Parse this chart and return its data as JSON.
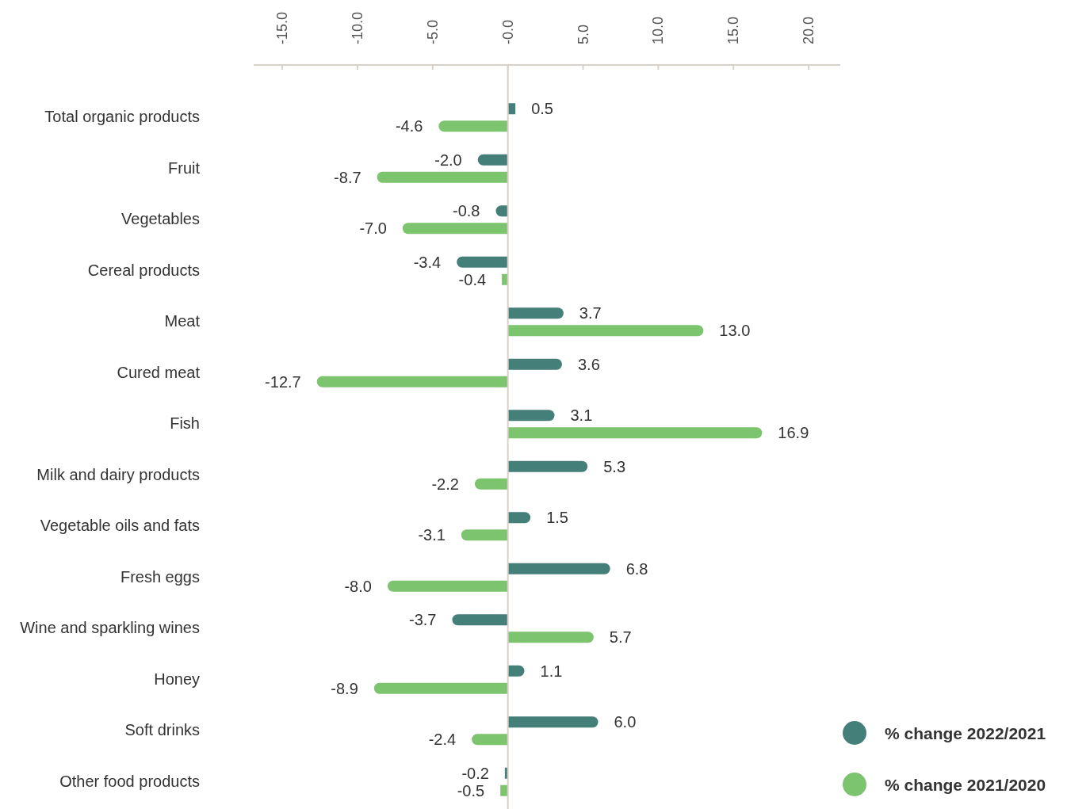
{
  "chart_data": {
    "type": "bar",
    "orientation": "horizontal",
    "categories": [
      "Total organic products",
      "Fruit",
      "Vegetables",
      "Cereal products",
      "Meat",
      "Cured meat",
      "Fish",
      "Milk and dairy products",
      "Vegetable oils and fats",
      "Fresh eggs",
      "Wine and sparkling wines",
      "Honey",
      "Soft drinks",
      "Other food products"
    ],
    "series": [
      {
        "name": "% change 2022/2021",
        "color": "#457f7a",
        "values": [
          0.5,
          -2.0,
          -0.8,
          -3.4,
          3.7,
          3.6,
          3.1,
          5.3,
          1.5,
          6.8,
          -3.7,
          1.1,
          6.0,
          -0.2
        ],
        "value_labels": [
          "0.5",
          "-2.0",
          "-0.8",
          "-3.4",
          "3.7",
          "3.6",
          "3.1",
          "5.3",
          "1.5",
          "6.8",
          "-3.7",
          "1.1",
          "6.0",
          "-0.2"
        ]
      },
      {
        "name": "% change 2021/2020",
        "color": "#7dc46e",
        "values": [
          -4.6,
          -8.7,
          -7.0,
          -0.4,
          13.0,
          -12.7,
          16.9,
          -2.2,
          -3.1,
          -8.0,
          5.7,
          -8.9,
          -2.4,
          -0.5
        ],
        "value_labels": [
          "-4.6",
          "-8.7",
          "-7.0",
          "-0.4",
          "13.0",
          "-12.7",
          "16.9",
          "-2.2",
          "-3.1",
          "-8.0",
          "5.7",
          "-8.9",
          "-2.4",
          "-0.5"
        ]
      }
    ],
    "xlim": [
      -16.9,
      22.1
    ],
    "xticks": [
      {
        "value": -15,
        "label": "-15.0"
      },
      {
        "value": -10,
        "label": "-10.0"
      },
      {
        "value": -5,
        "label": "-5.0"
      },
      {
        "value": 0,
        "label": "-0.0"
      },
      {
        "value": 5,
        "label": "5.0"
      },
      {
        "value": 10,
        "label": "10.0"
      },
      {
        "value": 15,
        "label": "15.0"
      },
      {
        "value": 20,
        "label": "20.0"
      }
    ],
    "grid": false,
    "ref_lines": [
      {
        "axis": "x",
        "value": 0,
        "color": "#d9d0c8"
      }
    ],
    "legend": "bottom right"
  }
}
